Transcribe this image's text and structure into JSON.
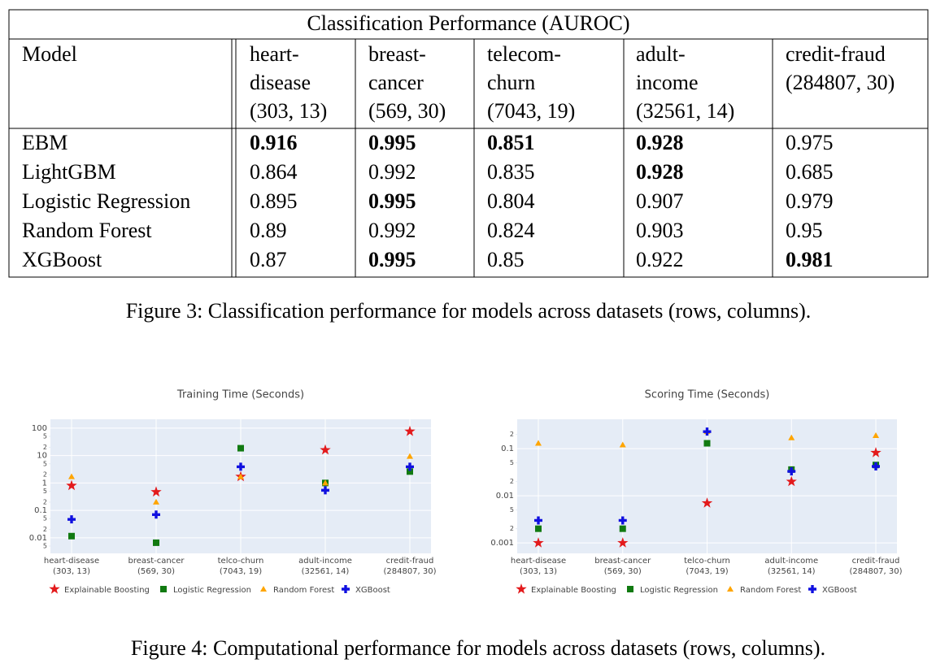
{
  "table": {
    "title": "Classification Performance (AUROC)",
    "columns": [
      [
        "Model"
      ],
      [
        "heart-",
        "disease",
        "(303, 13)"
      ],
      [
        "breast-",
        "cancer",
        "(569, 30)"
      ],
      [
        "telecom-",
        "churn",
        "(7043, 19)"
      ],
      [
        "adult-",
        "income",
        "(32561, 14)"
      ],
      [
        "credit-fraud",
        "(284807, 30)"
      ]
    ],
    "rows": [
      [
        "EBM",
        0.916,
        0.995,
        0.851,
        0.928,
        0.975
      ],
      [
        "LightGBM",
        0.864,
        0.992,
        0.835,
        0.928,
        0.685
      ],
      [
        "Logistic Regression",
        0.895,
        0.995,
        0.804,
        0.907,
        0.979
      ],
      [
        "Random Forest",
        0.89,
        0.992,
        0.824,
        0.903,
        0.95
      ],
      [
        "XGBoost",
        0.87,
        0.995,
        0.85,
        0.922,
        0.981
      ]
    ],
    "bold": [
      [
        false,
        true,
        true,
        true,
        true,
        false
      ],
      [
        false,
        false,
        false,
        false,
        true,
        false
      ],
      [
        false,
        false,
        true,
        false,
        false,
        false
      ],
      [
        false,
        false,
        false,
        false,
        false,
        false
      ],
      [
        false,
        false,
        true,
        false,
        false,
        true
      ]
    ]
  },
  "caption_3": "Figure 3: Classification performance for models across datasets (rows, columns).",
  "chart_data": [
    {
      "type": "scatter",
      "title": "Training Time (Seconds)",
      "log_y": true,
      "grid": true,
      "categories": [
        "heart-disease",
        "breast-cancer",
        "telco-churn",
        "adult-income",
        "credit-fraud"
      ],
      "category_details": [
        "(303, 13)",
        "(569, 30)",
        "(7043, 19)",
        "(32561, 14)",
        "(284807, 30)"
      ],
      "ylim": [
        0.0027,
        210
      ],
      "yticks": [
        {
          "value": 0.005,
          "label": "5"
        },
        0.01,
        {
          "value": 0.02,
          "label": "2"
        },
        {
          "value": 0.05,
          "label": "5"
        },
        0.1,
        {
          "value": 0.2,
          "label": "2"
        },
        {
          "value": 0.5,
          "label": "5"
        },
        1,
        {
          "value": 2,
          "label": "2"
        },
        {
          "value": 5,
          "label": "5"
        },
        10,
        {
          "value": 20,
          "label": "2"
        },
        {
          "value": 50,
          "label": "5"
        },
        100
      ],
      "series": [
        {
          "name": "Explainable Boosting",
          "color": "#e31a1c",
          "marker": "star",
          "values": [
            0.8,
            0.47,
            1.7,
            16,
            76
          ]
        },
        {
          "name": "Logistic Regression",
          "color": "#117a11",
          "marker": "square",
          "values": [
            0.0115,
            0.0066,
            18.5,
            1.0,
            2.6
          ]
        },
        {
          "name": "Random Forest",
          "color": "#ffa500",
          "marker": "triangle",
          "values": [
            1.7,
            0.2,
            1.7,
            1.0,
            9.3
          ]
        },
        {
          "name": "XGBoost",
          "color": "#1010e0",
          "marker": "cross",
          "values": [
            0.047,
            0.07,
            3.9,
            0.54,
            3.9
          ]
        }
      ]
    },
    {
      "type": "scatter",
      "title": "Scoring Time (Seconds)",
      "log_y": true,
      "grid": true,
      "categories": [
        "heart-disease",
        "breast-cancer",
        "telco-churn",
        "adult-income",
        "credit-fraud"
      ],
      "category_details": [
        "(303, 13)",
        "(569, 30)",
        "(7043, 19)",
        "(32561, 14)",
        "(284807, 30)"
      ],
      "ylim": [
        0.0006,
        0.42
      ],
      "yticks": [
        0.001,
        {
          "value": 0.002,
          "label": "2"
        },
        {
          "value": 0.005,
          "label": "5"
        },
        0.01,
        {
          "value": 0.02,
          "label": "2"
        },
        {
          "value": 0.05,
          "label": "5"
        },
        0.1,
        {
          "value": 0.2,
          "label": "2"
        }
      ],
      "series": [
        {
          "name": "Explainable Boosting",
          "color": "#e31a1c",
          "marker": "star",
          "values": [
            0.001,
            0.001,
            0.007,
            0.02,
            0.082
          ]
        },
        {
          "name": "Logistic Regression",
          "color": "#117a11",
          "marker": "square",
          "values": [
            0.002,
            0.002,
            0.13,
            0.036,
            0.045
          ]
        },
        {
          "name": "Random Forest",
          "color": "#ffa500",
          "marker": "triangle",
          "values": [
            0.13,
            0.12,
            0.23,
            0.17,
            0.19
          ]
        },
        {
          "name": "XGBoost",
          "color": "#1010e0",
          "marker": "cross",
          "values": [
            0.003,
            0.003,
            0.23,
            0.033,
            0.042
          ]
        }
      ]
    }
  ],
  "caption_4": "Figure 4: Computational performance for models across datasets (rows, columns)."
}
